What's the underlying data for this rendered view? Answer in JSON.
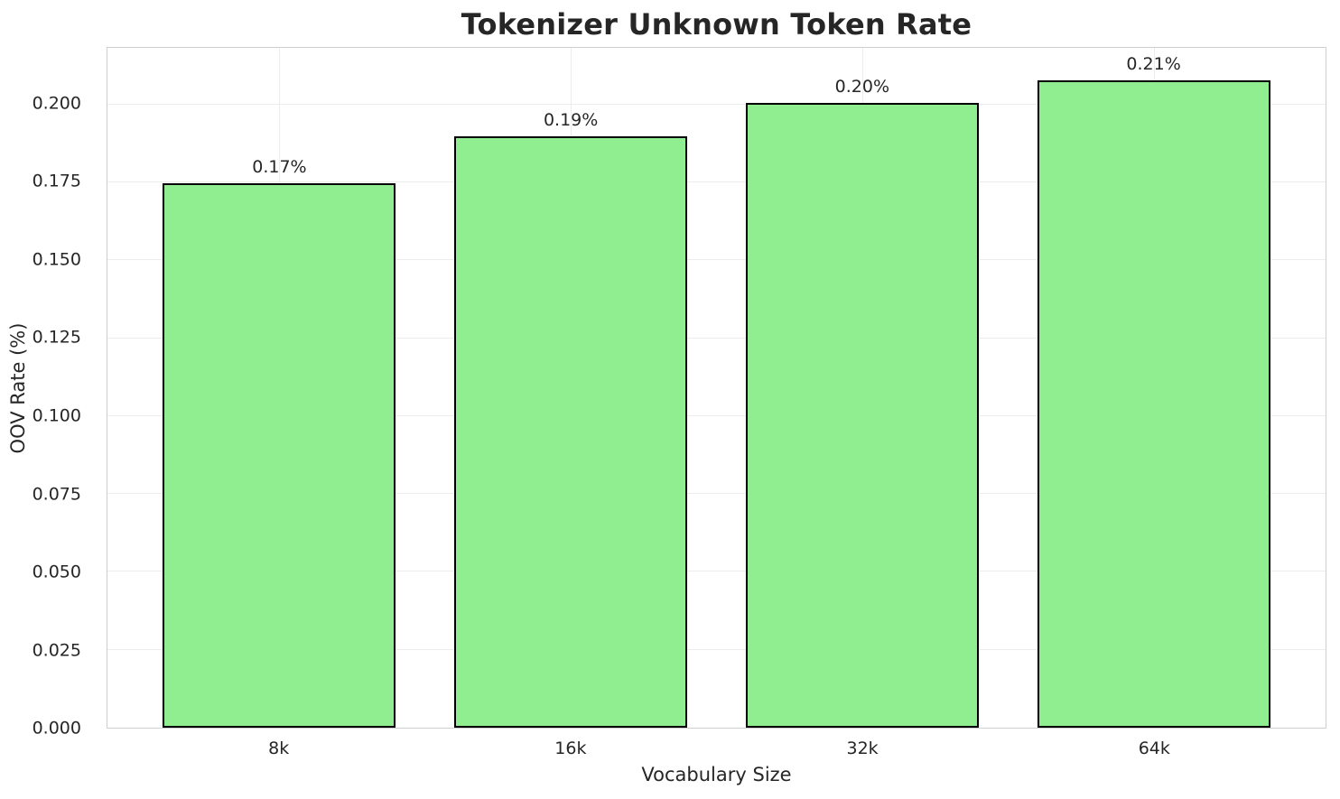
{
  "chart_data": {
    "type": "bar",
    "title": "Tokenizer Unknown Token Rate",
    "xlabel": "Vocabulary Size",
    "ylabel": "OOV Rate (%)",
    "categories": [
      "8k",
      "16k",
      "32k",
      "64k"
    ],
    "values": [
      0.1746,
      0.1899,
      0.2006,
      0.2078
    ],
    "bar_labels": [
      "0.17%",
      "0.19%",
      "0.20%",
      "0.21%"
    ],
    "ytick_values": [
      0.0,
      0.025,
      0.05,
      0.075,
      0.1,
      0.125,
      0.15,
      0.175,
      0.2
    ],
    "ytick_labels": [
      "0.000",
      "0.025",
      "0.050",
      "0.075",
      "0.100",
      "0.125",
      "0.150",
      "0.175",
      "0.200"
    ],
    "ylim": [
      0,
      0.2182
    ],
    "xlim": [
      -0.59,
      3.59
    ],
    "bar_width": 0.8,
    "grid": true,
    "legend": "none",
    "colors": {
      "bar_fill": "#90EE90",
      "bar_edge": "#000000",
      "gridline": "#ececec",
      "spine": "#cfcfcf",
      "text": "#262626",
      "background": "#ffffff"
    }
  }
}
